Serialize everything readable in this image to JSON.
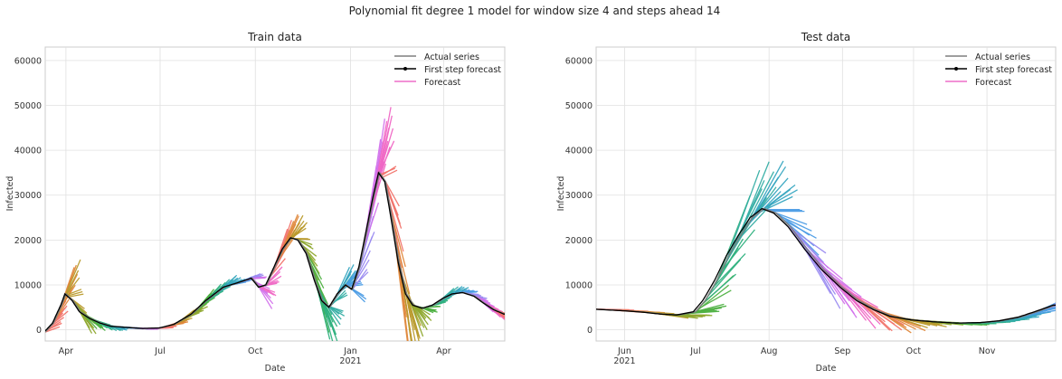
{
  "figure": {
    "suptitle": "Polynomial fit degree 1 model for window size 4 and steps ahead 14"
  },
  "legend_labels": [
    "Actual series",
    "First step forecast",
    "Forecast"
  ],
  "colors": {
    "actual": "#7f7f7f",
    "first_step": "#000000",
    "forecast_legend": "#ee6ec8",
    "palette": [
      "#f2736b",
      "#e0873a",
      "#b99a2c",
      "#8fa82f",
      "#4eb142",
      "#2fb17f",
      "#33ada4",
      "#36a6c0",
      "#4b9ce5",
      "#9a8bf1",
      "#d271ec",
      "#f068c5"
    ]
  },
  "chart_data": [
    {
      "type": "line",
      "title": "Train data",
      "xlabel": "Date",
      "ylabel": "Infected",
      "xlim": [
        "2020-03-12",
        "2021-05-30"
      ],
      "ylim": [
        -2500,
        63000
      ],
      "yticks": [
        0,
        10000,
        20000,
        30000,
        40000,
        50000,
        60000
      ],
      "xticks": [
        {
          "date": "2020-04-01",
          "label": "Apr",
          "sublabel": ""
        },
        {
          "date": "2020-07-01",
          "label": "Jul",
          "sublabel": ""
        },
        {
          "date": "2020-10-01",
          "label": "Oct",
          "sublabel": ""
        },
        {
          "date": "2021-01-01",
          "label": "Jan",
          "sublabel": "2021"
        },
        {
          "date": "2021-04-01",
          "label": "Apr",
          "sublabel": ""
        }
      ],
      "grid": true,
      "legend": "top-right",
      "actual_series": [
        [
          "2020-03-12",
          -500
        ],
        [
          "2020-03-20",
          1500
        ],
        [
          "2020-03-28",
          5500
        ],
        [
          "2020-04-01",
          8000
        ],
        [
          "2020-04-08",
          6500
        ],
        [
          "2020-04-15",
          4000
        ],
        [
          "2020-04-25",
          2500
        ],
        [
          "2020-05-05",
          1500
        ],
        [
          "2020-05-15",
          800
        ],
        [
          "2020-06-01",
          500
        ],
        [
          "2020-06-15",
          300
        ],
        [
          "2020-07-01",
          400
        ],
        [
          "2020-07-15",
          1200
        ],
        [
          "2020-08-01",
          3500
        ],
        [
          "2020-08-15",
          6500
        ],
        [
          "2020-09-01",
          9500
        ],
        [
          "2020-09-15",
          10500
        ],
        [
          "2020-09-28",
          11500
        ],
        [
          "2020-10-05",
          9500
        ],
        [
          "2020-10-12",
          10000
        ],
        [
          "2020-10-20",
          14000
        ],
        [
          "2020-10-28",
          18000
        ],
        [
          "2020-11-05",
          20500
        ],
        [
          "2020-11-12",
          20000
        ],
        [
          "2020-11-20",
          17000
        ],
        [
          "2020-11-28",
          11000
        ],
        [
          "2020-12-05",
          6500
        ],
        [
          "2020-12-12",
          5000
        ],
        [
          "2020-12-20",
          8000
        ],
        [
          "2020-12-28",
          10000
        ],
        [
          "2021-01-03",
          9000
        ],
        [
          "2021-01-10",
          14000
        ],
        [
          "2021-01-17",
          22000
        ],
        [
          "2021-01-24",
          30000
        ],
        [
          "2021-01-29",
          35000
        ],
        [
          "2021-02-04",
          33000
        ],
        [
          "2021-02-10",
          25000
        ],
        [
          "2021-02-17",
          15000
        ],
        [
          "2021-02-24",
          8000
        ],
        [
          "2021-03-03",
          5500
        ],
        [
          "2021-03-12",
          4800
        ],
        [
          "2021-03-22",
          5500
        ],
        [
          "2021-04-01",
          7000
        ],
        [
          "2021-04-10",
          8000
        ],
        [
          "2021-04-20",
          8300
        ],
        [
          "2021-05-01",
          7500
        ],
        [
          "2021-05-10",
          6000
        ],
        [
          "2021-05-20",
          4500
        ],
        [
          "2021-05-30",
          3500
        ]
      ]
    },
    {
      "type": "line",
      "title": "Test data",
      "xlabel": "Date",
      "ylabel": "Infected",
      "xlim": [
        "2021-05-20",
        "2021-11-30"
      ],
      "ylim": [
        -2500,
        63000
      ],
      "yticks": [
        0,
        10000,
        20000,
        30000,
        40000,
        50000,
        60000
      ],
      "xticks": [
        {
          "date": "2021-06-01",
          "label": "Jun",
          "sublabel": "2021"
        },
        {
          "date": "2021-07-01",
          "label": "Jul",
          "sublabel": ""
        },
        {
          "date": "2021-08-01",
          "label": "Aug",
          "sublabel": ""
        },
        {
          "date": "2021-09-01",
          "label": "Sep",
          "sublabel": ""
        },
        {
          "date": "2021-10-01",
          "label": "Oct",
          "sublabel": ""
        },
        {
          "date": "2021-11-01",
          "label": "Nov",
          "sublabel": ""
        }
      ],
      "grid": true,
      "legend": "top-right",
      "actual_series": [
        [
          "2021-05-20",
          4600
        ],
        [
          "2021-05-27",
          4400
        ],
        [
          "2021-06-03",
          4200
        ],
        [
          "2021-06-10",
          3900
        ],
        [
          "2021-06-17",
          3500
        ],
        [
          "2021-06-24",
          3300
        ],
        [
          "2021-07-01",
          4000
        ],
        [
          "2021-07-05",
          6500
        ],
        [
          "2021-07-10",
          11000
        ],
        [
          "2021-07-15",
          16500
        ],
        [
          "2021-07-20",
          21000
        ],
        [
          "2021-07-25",
          25000
        ],
        [
          "2021-07-30",
          27000
        ],
        [
          "2021-08-04",
          26000
        ],
        [
          "2021-08-10",
          23000
        ],
        [
          "2021-08-17",
          18000
        ],
        [
          "2021-08-24",
          13500
        ],
        [
          "2021-09-01",
          9500
        ],
        [
          "2021-09-08",
          6500
        ],
        [
          "2021-09-15",
          4500
        ],
        [
          "2021-09-22",
          3000
        ],
        [
          "2021-10-01",
          2200
        ],
        [
          "2021-10-10",
          1800
        ],
        [
          "2021-10-20",
          1500
        ],
        [
          "2021-10-30",
          1600
        ],
        [
          "2021-11-07",
          2000
        ],
        [
          "2021-11-15",
          2800
        ],
        [
          "2021-11-22",
          4000
        ],
        [
          "2021-11-30",
          5500
        ]
      ]
    }
  ]
}
